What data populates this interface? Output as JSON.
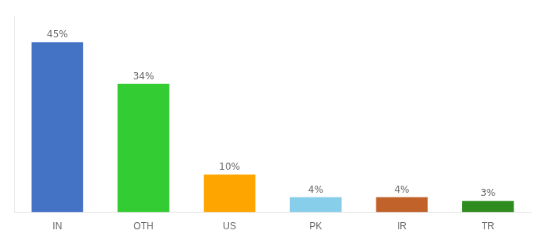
{
  "chart_data": {
    "type": "bar",
    "categories": [
      "IN",
      "OTH",
      "US",
      "PK",
      "IR",
      "TR"
    ],
    "values": [
      45,
      34,
      10,
      4,
      4,
      3
    ],
    "value_labels": [
      "45%",
      "34%",
      "10%",
      "4%",
      "4%",
      "3%"
    ],
    "colors": [
      "#4472C4",
      "#33CC33",
      "#FFA500",
      "#87CEEB",
      "#C0622A",
      "#2E8B1E"
    ],
    "ylim": [
      0,
      52
    ],
    "data_labels": true,
    "tick_labels": "x",
    "grid": false
  }
}
